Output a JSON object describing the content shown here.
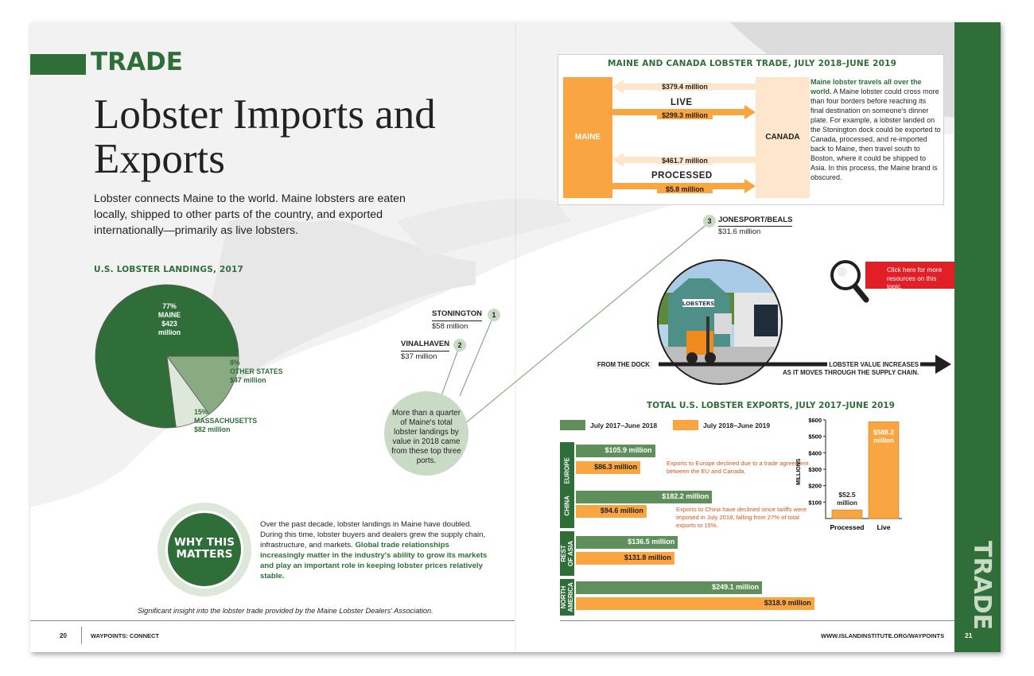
{
  "left_page": {
    "section": "TRADE",
    "title": "Lobster Imports and Exports",
    "intro": "Lobster connects Maine to the world. Maine lobsters are eaten locally, shipped to other parts of the country, and exported internationally—primarily as live lobsters.",
    "landings_title": "U.S. LOBSTER LANDINGS, 2017",
    "ports": [
      {
        "rank": "1",
        "name": "STONINGTON",
        "value": "$58 million"
      },
      {
        "rank": "2",
        "name": "VINALHAVEN",
        "value": "$37 million"
      },
      {
        "rank": "3",
        "name": "JONESPORT/BEALS",
        "value": "$31.6 million"
      }
    ],
    "ports_note": "More than a quarter of Maine's total lobster landings by value in 2018 came from these top three ports.",
    "why_label_1": "WHY THIS",
    "why_label_2": "MATTERS",
    "why_text": "Over the past decade, lobster landings in Maine have doubled. During this time, lobster buyers and dealers grew the supply chain, infrastructure, and markets.",
    "why_text_strong": "Global trade relationships increasingly matter in the industry's ability to grow its markets and play an important role in keeping lobster prices relatively stable.",
    "credit": "Significant insight into the lobster trade provided by the Maine Lobster Dealers' Association.",
    "page_number": "20",
    "footer": "WAYPOINTS: CONNECT"
  },
  "right_page": {
    "trade_box_title": "MAINE AND CANADA LOBSTER TRADE, JULY 2018–JUNE 2019",
    "maine": "MAINE",
    "canada": "CANADA",
    "live": "LIVE",
    "processed": "PROCESSED",
    "live_import": "$379.4 million",
    "live_export": "$299.3 million",
    "proc_import": "$461.7 million",
    "proc_export": "$5.8 million",
    "note_strong": "Maine lobster travels all over the world.",
    "note": "A Maine lobster could cross more than four borders before reaching its final destination on someone's dinner plate. For example, a lobster landed on the Stonington dock could be exported to Canada, processed, and re-imported back to Maine, then travel south to Boston, where it could be shipped to Asia. In this process, the Maine brand is obscured.",
    "resources_link": "Click here for more resources on this topic.",
    "from_dock": "FROM THE DOCK",
    "value_increase_1": "LOBSTER VALUE INCREASES",
    "value_increase_2": "AS IT MOVES THROUGH THE SUPPLY CHAIN.",
    "photo_sign": "LOBSTERS",
    "exports_title": "TOTAL U.S. LOBSTER EXPORTS, JULY 2017–JUNE 2019",
    "europe_note": "Exports to Europe declined due to a trade agreement between the EU and Canada.",
    "china_note": "Exports to China have declined since tariffs were imposed in July 2018, falling from 27% of total exports to 15%.",
    "side_tab": "TRADE",
    "page_number": "21",
    "footer_url": "WWW.ISLANDINSTITUTE.ORG/WAYPOINTS"
  },
  "colors": {
    "green": "#2f6e38",
    "light_green": "#c9dbc4",
    "mid_green": "#8aaa84",
    "orange": "#f9a541",
    "red": "#e21e26",
    "note_orange": "#d4561a"
  },
  "chart_data": [
    {
      "type": "pie",
      "title": "U.S. LOBSTER LANDINGS, 2017",
      "slices": [
        {
          "label": "MAINE",
          "percent": 77,
          "value": "$423 million",
          "color": "#2f6e38"
        },
        {
          "label": "MASSACHUSETTS",
          "percent": 15,
          "value": "$82 million",
          "color": "#8aaa84"
        },
        {
          "label": "OTHER STATES",
          "percent": 8,
          "value": "$47 million",
          "color": "#dde8da"
        }
      ]
    },
    {
      "type": "bar",
      "orientation": "horizontal",
      "title": "TOTAL U.S. LOBSTER EXPORTS, JULY 2017–JUNE 2019",
      "categories": [
        "EUROPE",
        "CHINA",
        "REST OF ASIA",
        "NORTH AMERICA"
      ],
      "series": [
        {
          "name": "July 2017–June 2018",
          "color": "#5f8f5a",
          "values": [
            105.9,
            182.2,
            136.5,
            249.1
          ],
          "labels": [
            "$105.9 million",
            "$182.2 million",
            "$136.5 million",
            "$249.1 million"
          ]
        },
        {
          "name": "July 2018–June 2019",
          "color": "#f9a541",
          "values": [
            86.3,
            94.6,
            131.8,
            318.9
          ],
          "labels": [
            "$86.3 million",
            "$94.6 million",
            "$131.8 million",
            "$318.9 million"
          ]
        }
      ]
    },
    {
      "type": "bar",
      "orientation": "vertical",
      "categories": [
        "Processed",
        "Live"
      ],
      "values": [
        52.5,
        588.2
      ],
      "value_labels_1": [
        "$52.5",
        "$588.2"
      ],
      "value_labels_2": [
        "million",
        "million"
      ],
      "ylabel": "MILLIONS",
      "yticks": [
        "$100",
        "$200",
        "$300",
        "$400",
        "$500",
        "$600"
      ],
      "ylim": [
        0,
        600
      ],
      "color": "#f9a541"
    }
  ]
}
